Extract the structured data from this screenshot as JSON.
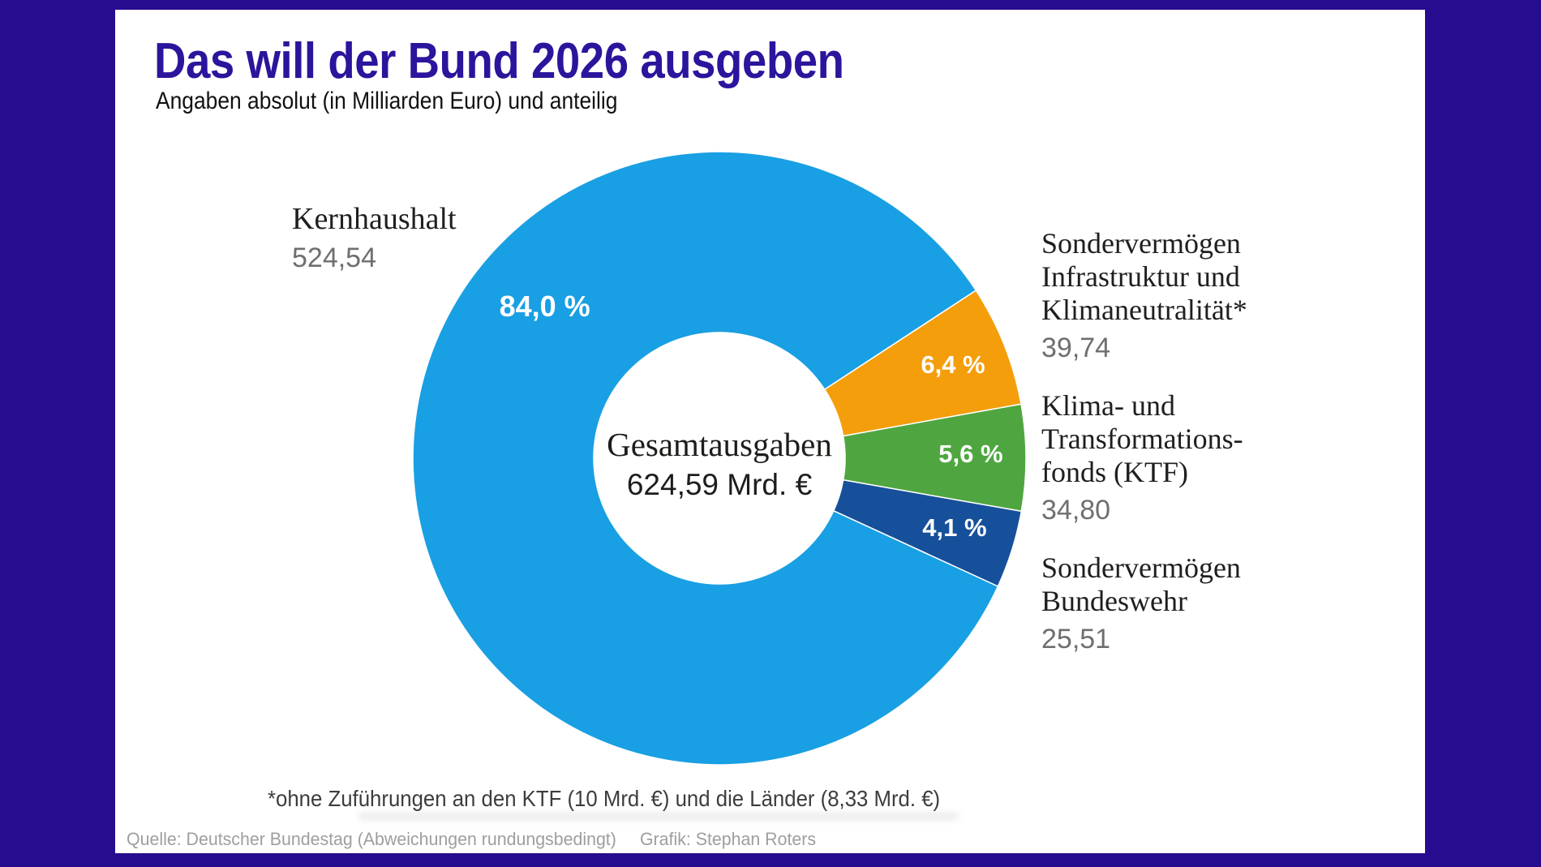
{
  "header": {
    "title": "Das will der Bund 2026 ausgeben",
    "subtitle": "Angaben absolut (in Milliarden Euro) und anteilig"
  },
  "chart_data": {
    "type": "pie",
    "variant": "donut",
    "title": "Das will der Bund 2026 ausgeben",
    "subtitle": "Angaben absolut (in Milliarden Euro) und anteilig",
    "units": "Milliarden Euro",
    "center_label": "Gesamtausgaben",
    "center_value": "624,59 Mrd. €",
    "total": 624.59,
    "donut_hole_ratio": 0.41,
    "start_angle_deg": 33.2,
    "slices": [
      {
        "id": "infrastruktur",
        "name": "Sondervermögen Infrastruktur und Klimaneutralität*",
        "value": 39.74,
        "pct": 6.4,
        "pct_label": "6,4 %",
        "color": "#F49E0C",
        "label_angle_deg": 21.7,
        "label_r_frac": 0.82
      },
      {
        "id": "ktf",
        "name": "Klima- und Transformationsfonds (KTF)",
        "value": 34.8,
        "pct": 5.6,
        "pct_label": "5,6 %",
        "color": "#4FA640",
        "label_angle_deg": 1.0,
        "label_r_frac": 0.82
      },
      {
        "id": "bundeswehr",
        "name": "Sondervermögen Bundeswehr",
        "value": 25.51,
        "pct": 4.1,
        "pct_label": "4,1 %",
        "color": "#17509A",
        "label_angle_deg": -16.5,
        "label_r_frac": 0.8
      },
      {
        "id": "kernhaushalt",
        "name": "Kernhaushalt",
        "value": 524.54,
        "pct": 84.0,
        "pct_label": "84,0 %",
        "color": "#199FE3",
        "label_angle_deg": 139.0,
        "label_r_frac": 0.755,
        "label_large": true
      }
    ]
  },
  "callouts": {
    "left": {
      "title": "Kernhaushalt",
      "value": "524,54"
    },
    "right": [
      {
        "lines": [
          "Sondervermögen",
          "Infrastruktur und",
          "Klimaneutralität*"
        ],
        "value": "39,74"
      },
      {
        "lines": [
          "Klima- und",
          "Transformations-",
          "fonds (KTF)"
        ],
        "value": "34,80"
      },
      {
        "lines": [
          "Sondervermögen",
          "Bundeswehr"
        ],
        "value": "25,51"
      }
    ]
  },
  "footer": {
    "footnote": "*ohne Zuführungen an den KTF (10 Mrd. €) und die Länder (8,33 Mrd. €)",
    "source": "Quelle: Deutscher Bundestag (Abweichungen rundungsbedingt)",
    "credit": "Grafik: Stephan Roters"
  },
  "colors": {
    "frame": "#280C8F",
    "card": "#FFFFFF",
    "title": "#2C149C",
    "text": "#1F1F1E",
    "value_gray": "#6F6F6F",
    "source_gray": "#9E9E9E"
  }
}
